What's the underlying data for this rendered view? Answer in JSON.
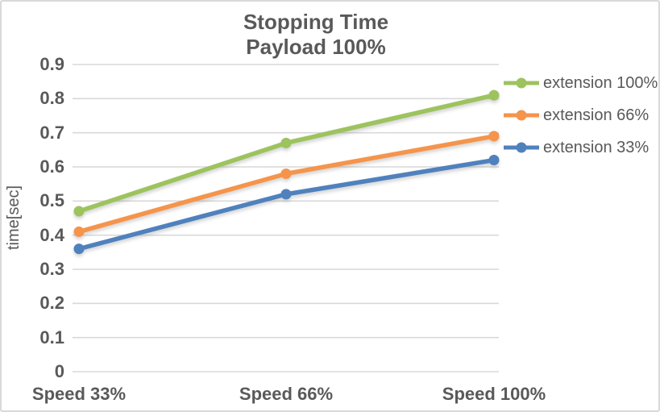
{
  "chart_data": {
    "type": "line",
    "title": "Stopping Time",
    "subtitle": "Payload 100%",
    "ylabel": "time[sec]",
    "xlabel": "",
    "categories": [
      "Speed 33%",
      "Speed 66%",
      "Speed 100%"
    ],
    "series": [
      {
        "name": "extension 100%",
        "color": "#9DC35E",
        "values": [
          0.47,
          0.67,
          0.81
        ]
      },
      {
        "name": "extension 66%",
        "color": "#F5944B",
        "values": [
          0.41,
          0.58,
          0.69
        ]
      },
      {
        "name": "extension 33%",
        "color": "#4F81BD",
        "values": [
          0.36,
          0.52,
          0.62
        ]
      }
    ],
    "ylim": [
      0,
      0.9
    ],
    "ytick_step": 0.1,
    "yticks": [
      "0.9",
      "0.8",
      "0.7",
      "0.6",
      "0.5",
      "0.4",
      "0.3",
      "0.2",
      "0.1",
      "0"
    ],
    "grid": true,
    "marker": "circle",
    "legend_position": "right"
  },
  "colors": {
    "text": "#595959",
    "gridline": "#D9D9D9",
    "chart_border": "#D9D9D9",
    "background": "#FFFFFF"
  }
}
